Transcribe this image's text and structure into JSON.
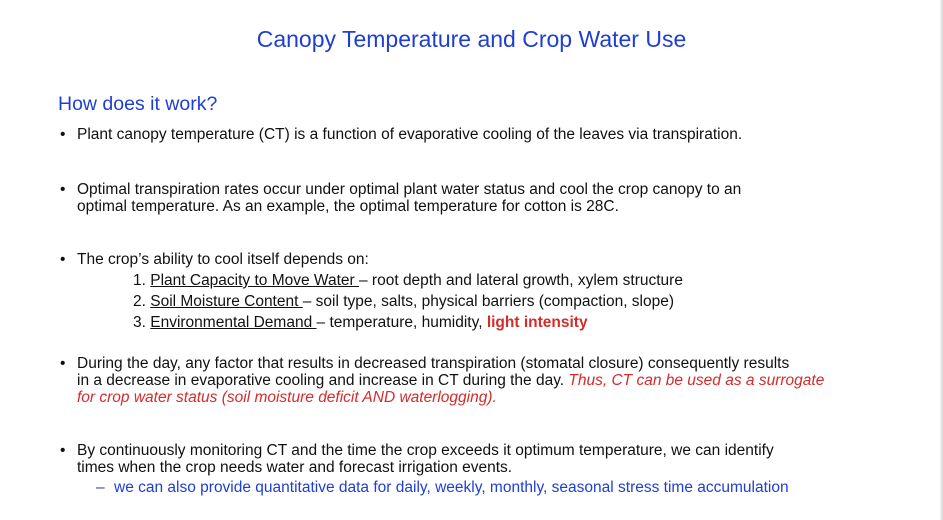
{
  "title": "Canopy Temperature and Crop Water Use",
  "subtitle": "How does it work?",
  "bullet_glyph": "•",
  "bullets": [
    {
      "line1": "Plant canopy temperature (CT) is a function of evaporative cooling of the leaves via transpiration."
    },
    {
      "line1": "Optimal transpiration rates occur under optimal plant water status and cool the crop canopy to an",
      "line2": "optimal temperature. As an example, the optimal temperature for cotton is 28C."
    },
    {
      "line1": "The crop’s ability to cool itself depends on:"
    },
    {
      "line1": "During the day, any factor that results in decreased transpiration (stomatal closure) consequently results",
      "line2_plain": "in a decrease in evaporative cooling and increase in CT during the day. ",
      "line2_red": "Thus, CT can be used as a surrogate",
      "line3_red": "for crop water status (soil moisture deficit AND waterlogging)."
    },
    {
      "line1": "By continuously monitoring CT and the time the crop exceeds it optimum temperature, we can identify",
      "line2": "times when the crop needs water and forecast irrigation events."
    }
  ],
  "factors": [
    {
      "num": "1. ",
      "label": "Plant Capacity to Move Water ",
      "desc": "– root depth and lateral growth, xylem structure"
    },
    {
      "num": "2. ",
      "label": "Soil Moisture Content ",
      "desc": "– soil type, salts, physical barriers (compaction, slope)"
    },
    {
      "num": "3. ",
      "label": "Environmental Demand ",
      "desc": "– temperature, humidity, ",
      "highlight": "light intensity"
    }
  ],
  "sub_point": {
    "dash": "–",
    "text": "we can also provide quantitative data for daily, weekly, monthly, seasonal stress time accumulation"
  },
  "colors": {
    "heading_blue": "#1f3fd1",
    "emphasis_red": "#d42b2b",
    "body_text": "#111111"
  }
}
